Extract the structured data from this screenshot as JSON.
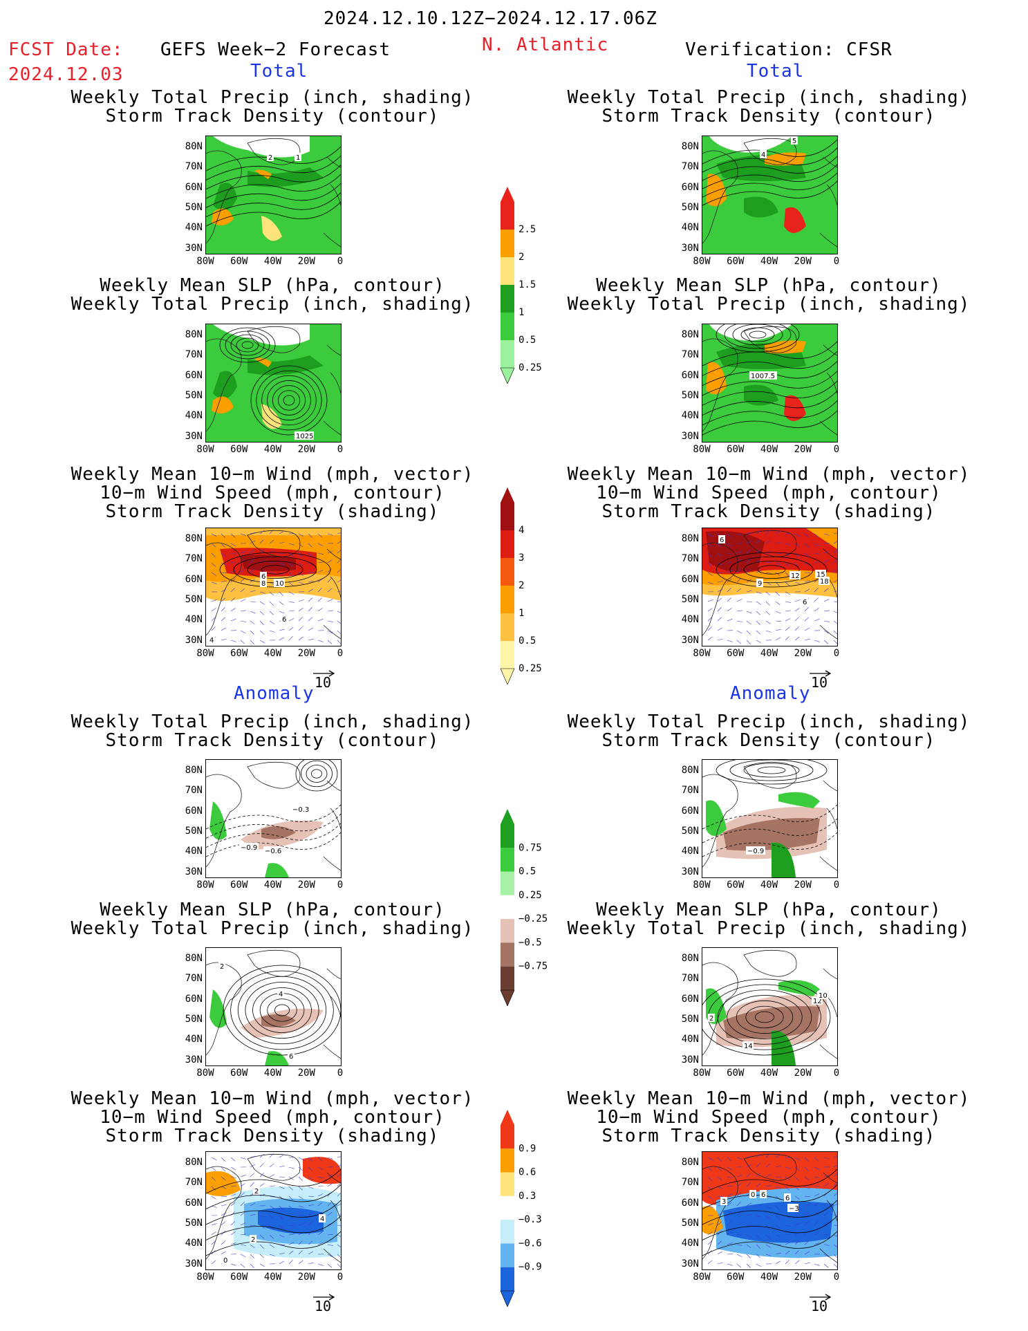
{
  "header": {
    "date_range": "2024.12.10.12Z−2024.12.17.06Z",
    "fcst_label": "FCST Date:",
    "fcst_date": "2024.12.03",
    "forecast_title": "GEFS Week−2 Forecast",
    "region": "N. Atlantic",
    "verification": "Verification: CFSR"
  },
  "sections": {
    "total": "Total",
    "anomaly": "Anomaly"
  },
  "panel_titles": {
    "precip_storm": [
      "Weekly Total Precip (inch, shading)",
      "Storm Track Density (contour)"
    ],
    "slp_precip": [
      "Weekly Mean SLP (hPa, contour)",
      "Weekly Total Precip (inch, shading)"
    ],
    "wind_storm": [
      "Weekly Mean 10−m Wind (mph, vector)",
      "10−m Wind Speed (mph, contour)",
      "Storm Track Density (shading)"
    ]
  },
  "axes": {
    "lat_ticks": [
      "80N",
      "70N",
      "60N",
      "50N",
      "40N",
      "30N"
    ],
    "lon_ticks": [
      "80W",
      "60W",
      "40W",
      "20W",
      "0"
    ]
  },
  "vector_ref": "10",
  "contour_labels": {
    "r1_left": [
      "2",
      "1"
    ],
    "r1_right": [
      "4",
      "5"
    ],
    "r2_left": [
      "1025"
    ],
    "r2_right": [
      "1007.5"
    ],
    "r3_left": [
      "8",
      "6",
      "10",
      "6",
      "4"
    ],
    "r3_right": [
      "6",
      "9",
      "12",
      "15",
      "18",
      "6"
    ],
    "r4_left": [
      "−0.3",
      "−0.9",
      "−0.6"
    ],
    "r4_right": [
      "−0.9"
    ],
    "r5_left": [
      "2",
      "4",
      "6"
    ],
    "r5_right": [
      "2",
      "12",
      "10",
      "14"
    ],
    "r6_left": [
      "2",
      "4",
      "2",
      "0"
    ],
    "r6_right": [
      "3",
      "0",
      "6",
      "6",
      "−3"
    ]
  },
  "colorbars": {
    "precip": {
      "labels": [
        "2.5",
        "2",
        "1.5",
        "1",
        "0.5",
        "0.25"
      ],
      "colors": [
        "#e8231c",
        "#fb9e00",
        "#fee27a",
        "#1e9e1e",
        "#3ccb3c",
        "#9cf29c"
      ]
    },
    "storm_total": {
      "labels": [
        "4",
        "3",
        "2",
        "1",
        "0.5",
        "0.25"
      ],
      "colors": [
        "#a01010",
        "#dd1c12",
        "#f45a10",
        "#fb9e00",
        "#fdc040",
        "#fef4a8"
      ]
    },
    "precip_anom": {
      "labels": [
        "0.75",
        "0.5",
        "0.25",
        "−0.25",
        "−0.5",
        "−0.75"
      ],
      "colors": [
        "#1e9e1e",
        "#3ccb3c",
        "#a8f2a8",
        "#ffffff",
        "#e6c2b6",
        "#a67464",
        "#6b3d30"
      ]
    },
    "storm_anom": {
      "labels": [
        "0.9",
        "0.6",
        "0.3",
        "−0.3",
        "−0.6",
        "−0.9"
      ],
      "colors": [
        "#ee3818",
        "#fb9e00",
        "#fee27a",
        "#ffffff",
        "#c6eefa",
        "#64b4f0",
        "#1c64dc"
      ]
    }
  }
}
